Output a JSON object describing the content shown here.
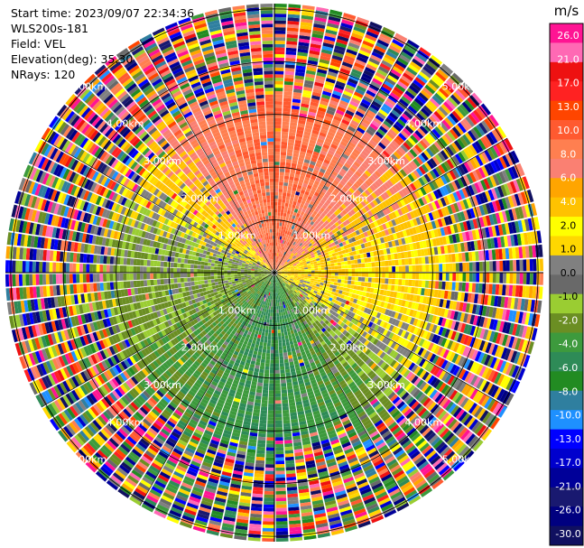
{
  "header": {
    "start_time": "Start time: 2023/09/07 22:34:36",
    "instrument": "WLS200s-181",
    "field": "Field: VEL",
    "elevation": "Elevation(deg): 35.30",
    "nrays": "NRays: 120"
  },
  "chart_data": {
    "type": "heatmap",
    "projection": "polar-ppi",
    "field": "VEL",
    "units": "m/s",
    "nrays": 120,
    "elevation_deg": 35.3,
    "range_rings_km": [
      1.0,
      2.0,
      3.0,
      4.0,
      5.0
    ],
    "range_ring_labels": [
      "1.00km",
      "2.00km",
      "3.00km",
      "4.00km",
      "5.00km"
    ],
    "max_range_km": 5.0,
    "colorbar": {
      "title": "m/s",
      "ticks": [
        "26.0",
        "21.0",
        "17.0",
        "13.0",
        "10.0",
        "8.0",
        "6.0",
        "4.0",
        "2.0",
        "1.0",
        "0.0",
        "-1.0",
        "-2.0",
        "-4.0",
        "-6.0",
        "-8.0",
        "-10.0",
        "-13.0",
        "-17.0",
        "-21.0",
        "-26.0",
        "-30.0"
      ],
      "colors": [
        "#ff1493",
        "#ff69b4",
        "#ee1111",
        "#ff2222",
        "#ff4500",
        "#ff5a30",
        "#ff7f50",
        "#fa8072",
        "#ffa500",
        "#ffc200",
        "#ffff00",
        "#ffd700",
        "#808080",
        "#696969",
        "#9acd32",
        "#6b8e23",
        "#3d9a3d",
        "#2e8b57",
        "#228b22",
        "#2f7f9f",
        "#1e90ff",
        "#0000ff",
        "#0000cd",
        "#000099",
        "#191970",
        "#000080",
        "#101060"
      ]
    },
    "sectors": [
      {
        "direction": "north",
        "velocity_ms": 8.0
      },
      {
        "direction": "east",
        "velocity_ms": 2.0
      },
      {
        "direction": "south",
        "velocity_ms": -6.0
      },
      {
        "direction": "west",
        "velocity_ms": -2.0
      }
    ]
  }
}
